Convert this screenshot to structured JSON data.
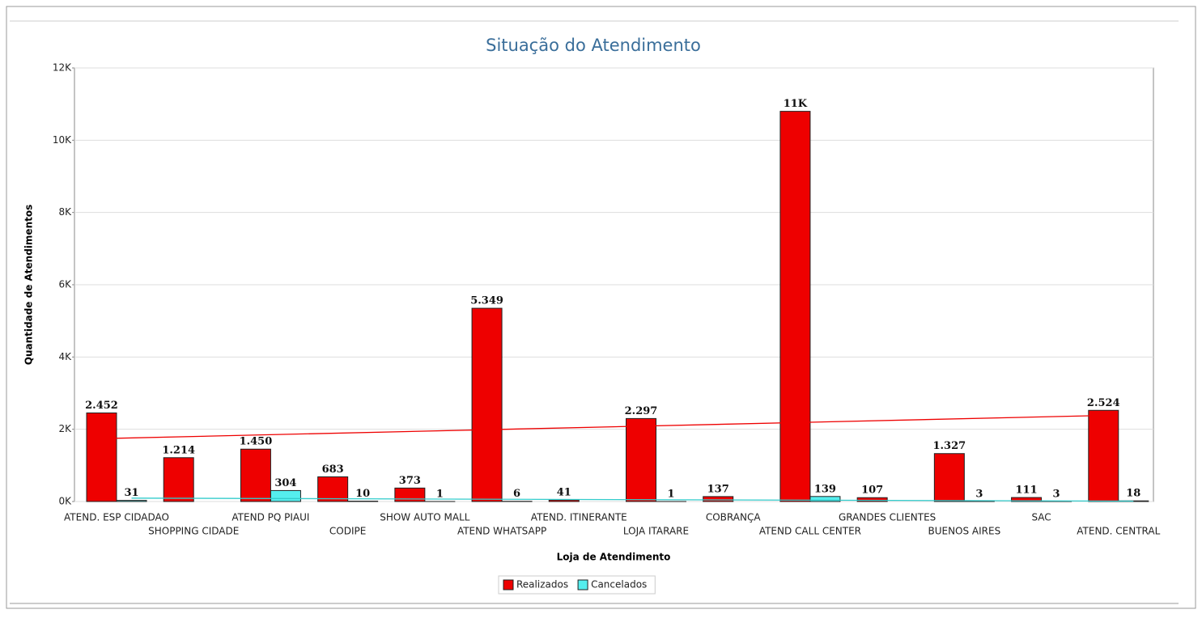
{
  "chart_data": {
    "type": "bar",
    "title": "Situação do Atendimento",
    "x_label": "Loja de Atendimento",
    "y_label": "Quantidade de Atendimentos",
    "categories": [
      "ATEND. ESP CIDADAO",
      "SHOPPING CIDADE",
      "ATEND PQ PIAUI",
      "CODIPE",
      "SHOW AUTO MALL",
      "ATEND WHATSAPP",
      "ATEND. ITINERANTE",
      "LOJA ITARARE",
      "COBRANÇA",
      "ATEND CALL CENTER",
      "GRANDES CLIENTES",
      "BUENOS AIRES",
      "SAC",
      "ATEND. CENTRAL"
    ],
    "series": [
      {
        "name": "Realizados",
        "color": "#ee0000",
        "values": [
          2452,
          1214,
          1450,
          683,
          373,
          5349,
          41,
          2297,
          137,
          10800,
          107,
          1327,
          111,
          2524
        ],
        "value_labels": [
          "2.452",
          "1.214",
          "1.450",
          "683",
          "373",
          "5.349",
          "41",
          "2.297",
          "137",
          "11K",
          "107",
          "1.327",
          "111",
          "2.524"
        ]
      },
      {
        "name": "Cancelados",
        "color": "#55eeee",
        "values": [
          31,
          null,
          304,
          10,
          1,
          6,
          null,
          1,
          null,
          139,
          null,
          3,
          3,
          18
        ],
        "value_labels": [
          "31",
          null,
          "304",
          "10",
          "1",
          "6",
          null,
          "1",
          null,
          "139",
          null,
          "3",
          "3",
          "18"
        ]
      }
    ],
    "ylim": [
      0,
      12000
    ],
    "yticks": [
      {
        "value": 0,
        "label": "0K"
      },
      {
        "value": 2000,
        "label": "2K"
      },
      {
        "value": 4000,
        "label": "4K"
      },
      {
        "value": 6000,
        "label": "6K"
      },
      {
        "value": 8000,
        "label": "8K"
      },
      {
        "value": 10000,
        "label": "10K"
      },
      {
        "value": 12000,
        "label": "12K"
      }
    ],
    "grid": true,
    "legend": "bottom",
    "trendline": true
  }
}
